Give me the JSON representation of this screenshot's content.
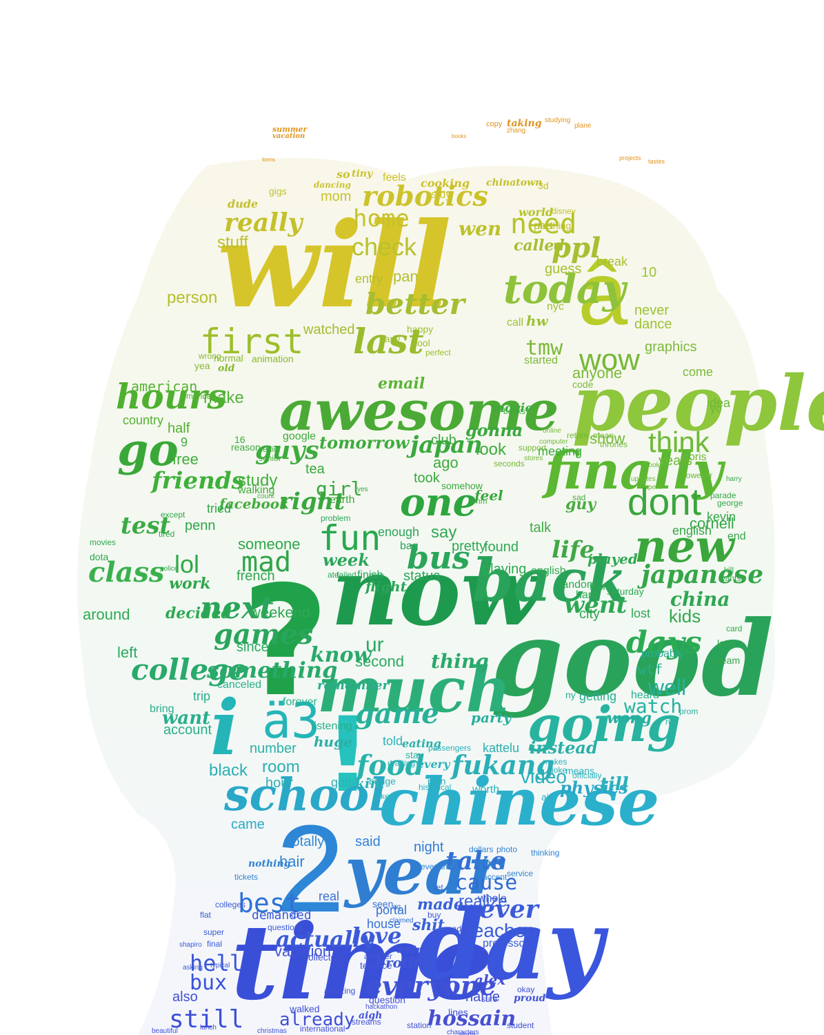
{
  "words": [
    "will",
    "â",
    "people",
    "good",
    "now",
    "?",
    "time",
    "day",
    "2",
    "year",
    "chinese",
    "!",
    "i",
    "ä3",
    "much",
    "awesome",
    "back",
    "going",
    "school",
    "first",
    "go",
    "finally",
    "dont",
    "new",
    "one",
    "hours",
    "today",
    "need",
    "check",
    "home",
    "robotics",
    "really",
    "stuff",
    "better",
    "last",
    "wow",
    "tmw",
    "ppl",
    "think",
    "japanese",
    "cornell",
    "kids",
    "days",
    "went",
    "china",
    "life",
    "class",
    "lol",
    "mad",
    "fun",
    "bus",
    "next",
    "games",
    "college",
    "something",
    "know",
    "thing",
    "game",
    "food",
    "fukang",
    "video",
    "watch",
    "well",
    "wtf",
    "physics",
    "best",
    "hell",
    "bux",
    "still",
    "already",
    "everyone",
    "love",
    "teacher",
    "ever",
    "actually",
    "cause",
    "take",
    "said",
    "totally",
    "night",
    "hair",
    "made",
    "shit",
    "realize",
    "friends",
    "guys",
    "japan",
    "gonna",
    "tomorrow",
    "email",
    "make",
    "free",
    "study",
    "facebook",
    "right",
    "girl",
    "tea",
    "test",
    "work",
    "french",
    "weekend",
    "decided",
    "around",
    "left",
    "since",
    "second",
    "ur",
    "came",
    "want",
    "account",
    "number",
    "black",
    "room",
    "hour",
    "kim",
    "told",
    "party",
    "wong",
    "instead",
    "kattelu",
    "till",
    "hossain",
    "name",
    "alex",
    "also",
    "vacation",
    "brother",
    "question",
    "real",
    "house",
    "portal",
    "professor",
    "whole",
    "show",
    "look",
    "ago",
    "took",
    "feel",
    "say",
    "pretty",
    "playing",
    "found",
    "talk",
    "guy",
    "anyone",
    "graphics",
    "code",
    "years",
    "dance",
    "never",
    "called",
    "guess",
    "break",
    "part",
    "world",
    "wen",
    "mom",
    "pan",
    "entry",
    "person",
    "watched",
    "american",
    "country",
    "half",
    "club",
    "movie",
    "idea",
    "come",
    "kevin",
    "end",
    "doris",
    "meeting",
    "someone",
    "penn",
    "tried",
    "status",
    "week",
    "finish",
    "flight",
    "bag",
    "enough",
    "saturday",
    "english",
    "random",
    "hard",
    "train",
    "played",
    "lost",
    "city",
    "probably",
    "heard",
    "getting",
    "ny",
    "gotta",
    "bring",
    "trip",
    "forever",
    "canceled",
    "remember",
    "listening",
    "huge",
    "eating",
    "stay",
    "plan",
    "every",
    "worth",
    "air",
    "means",
    "english",
    "yo",
    "10",
    "started",
    "nyc",
    "call",
    "hw",
    "dude",
    "gigs",
    "feels",
    "cooking",
    "stuy",
    "chinatown",
    "flushing",
    "disney",
    "3d",
    "copy",
    "taking",
    "zhang",
    "studying",
    "plane",
    "summer",
    "vacation",
    "projects",
    "tastes",
    "items",
    "books",
    "so",
    "dancing",
    "tiny",
    "early",
    "happy",
    "cool",
    "perfect",
    "animation",
    "normal",
    "wrong",
    "yea",
    "old",
    "monday",
    "senior",
    "google",
    "reason",
    "16",
    "9",
    "senior",
    "walking",
    "count",
    "earth",
    "yes",
    "somehow",
    "books",
    "hmm",
    "tired",
    "movies",
    "dota",
    "police",
    "except",
    "ate",
    "failed",
    "give",
    "problem",
    "sad",
    "mean",
    "thrones",
    "online",
    "return",
    "support",
    "computer",
    "seconds",
    "stores",
    "updates",
    "book",
    "spent",
    "however",
    "parade",
    "george",
    "harry",
    "kill",
    "wants",
    "card",
    "long",
    "steam",
    "prom",
    "run",
    "officially",
    "joke",
    "makes",
    "takes",
    "bridge",
    "drafting",
    "passengers",
    "historical",
    "collectors",
    "walked",
    "lunch",
    "christmas",
    "beautiful",
    "international",
    "characters",
    "storm",
    "student",
    "sure",
    "okay",
    "proud",
    "nothing",
    "tickets",
    "everything",
    "accent",
    "service",
    "dollars",
    "photo",
    "white",
    "thinking",
    "colleges",
    "flat",
    "super",
    "final",
    "shapiro",
    "typical",
    "asking",
    "terence",
    "another",
    "address",
    "diablo",
    "buy",
    "reading",
    "streams",
    "station",
    "aigh",
    "amazing",
    "hackathon",
    "demanded",
    "xd",
    "questions",
    "lines",
    "let",
    "seen",
    "gg",
    "claimed",
    "reasonable"
  ]
}
